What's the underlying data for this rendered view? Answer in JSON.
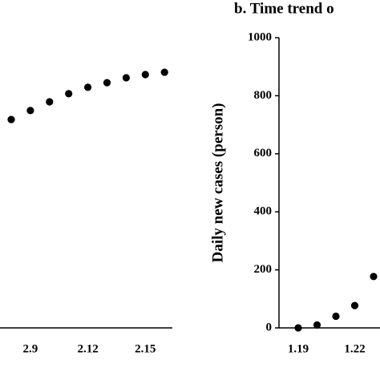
{
  "chart_data": [
    {
      "type": "scatter",
      "categories": [
        null,
        "2.9",
        null,
        null,
        "2.12",
        null,
        null,
        "2.15",
        null
      ],
      "values": [
        71.8,
        74.9,
        77.9,
        80.7,
        82.9,
        84.5,
        86.2,
        87.3,
        88.1
      ],
      "color": "#000000",
      "ylim": [
        0,
        100
      ]
    },
    {
      "type": "scatter",
      "title": "b. Time trend o",
      "y_label": "Daily new cases (person)",
      "categories": [
        "1.19",
        null,
        null,
        "1.22",
        null
      ],
      "values": [
        0,
        10,
        40,
        77,
        177
      ],
      "color": "#000000",
      "ylim": [
        0,
        1000
      ],
      "yticks": [
        0,
        200,
        400,
        600,
        800,
        1000
      ]
    }
  ]
}
